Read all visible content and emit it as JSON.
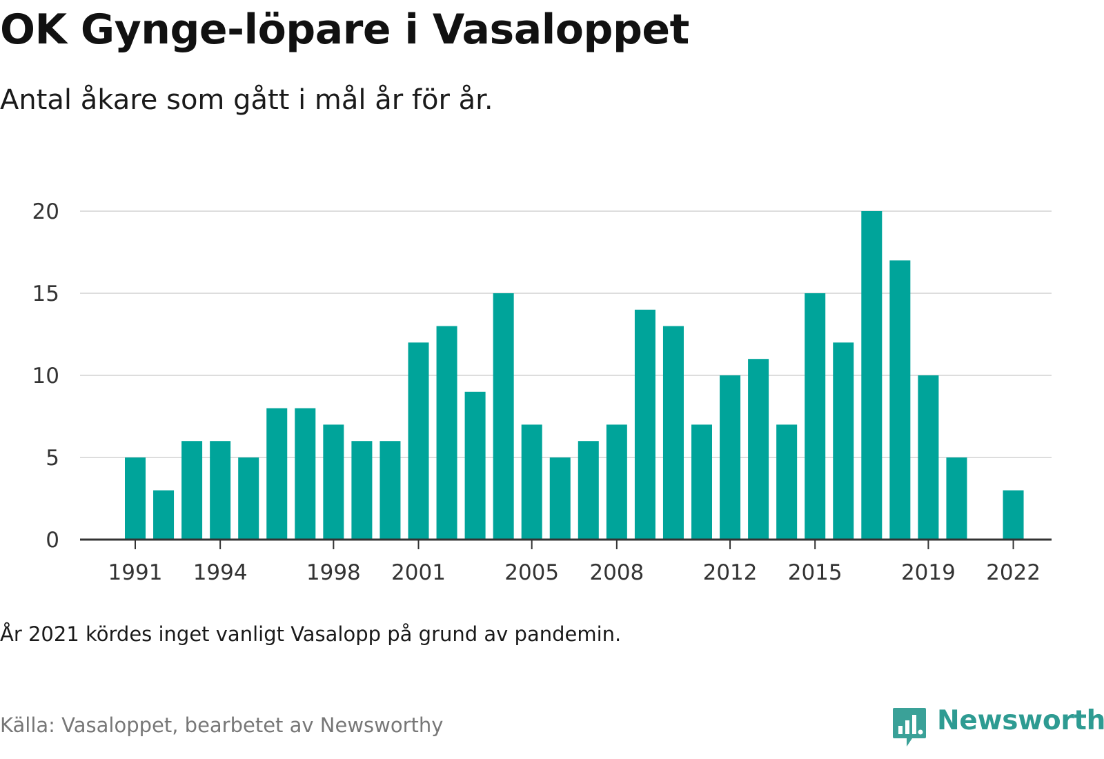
{
  "header": {
    "title": "OK Gynge-löpare i Vasaloppet",
    "subtitle": "Antal åkare som gått i mål år för år."
  },
  "footer": {
    "note": "År 2021 kördes inget vanligt Vasalopp på grund av pandemin.",
    "source": "Källa: Vasaloppet, bearbetet av Newsworthy",
    "brand": "Newsworthy",
    "brand_icon": "newsworthy-logo-icon"
  },
  "colors": {
    "bar": "#00a49a",
    "gridline": "#dddddd",
    "axis": "#333333",
    "brand": "#2e9b92"
  },
  "chart_data": {
    "type": "bar",
    "title": "OK Gynge-löpare i Vasaloppet",
    "subtitle": "Antal åkare som gått i mål år för år.",
    "xlabel": "",
    "ylabel": "",
    "ylim": [
      0,
      20
    ],
    "yticks": [
      0,
      5,
      10,
      15,
      20
    ],
    "xtick_labels": [
      "1991",
      "1994",
      "1998",
      "2001",
      "2005",
      "2008",
      "2012",
      "2015",
      "2019",
      "2022"
    ],
    "grid": "horizontal",
    "legend": "none",
    "categories": [
      1991,
      1992,
      1993,
      1994,
      1995,
      1996,
      1997,
      1998,
      1999,
      2000,
      2001,
      2002,
      2003,
      2004,
      2005,
      2006,
      2007,
      2008,
      2009,
      2010,
      2011,
      2012,
      2013,
      2014,
      2015,
      2016,
      2017,
      2018,
      2019,
      2020,
      2021,
      2022
    ],
    "values": [
      5,
      3,
      6,
      6,
      5,
      8,
      8,
      7,
      6,
      6,
      12,
      13,
      9,
      15,
      7,
      5,
      6,
      7,
      14,
      13,
      7,
      10,
      11,
      7,
      15,
      12,
      20,
      17,
      10,
      5,
      null,
      3
    ]
  }
}
